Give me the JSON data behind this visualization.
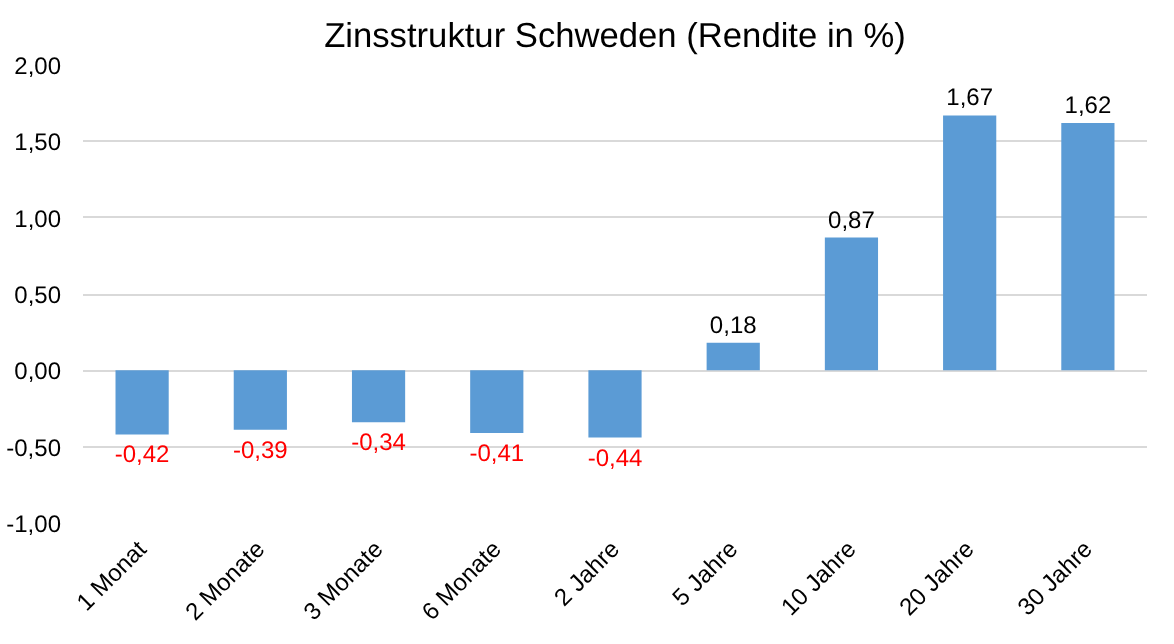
{
  "chart_data": {
    "type": "bar",
    "title": "Zinsstruktur Schweden (Rendite in %)",
    "categories": [
      "1 Monat",
      "2 Monate",
      "3 Monate",
      "6 Monate",
      "2 Jahre",
      "5 Jahre",
      "10 Jahre",
      "20 Jahre",
      "30 Jahre"
    ],
    "values": [
      -0.42,
      -0.39,
      -0.34,
      -0.41,
      -0.44,
      0.18,
      0.87,
      1.67,
      1.62
    ],
    "value_labels": [
      "-0,42",
      "-0,39",
      "-0,34",
      "-0,41",
      "-0,44",
      "0,18",
      "0,87",
      "1,67",
      "1,62"
    ],
    "color": "#5b9bd5",
    "ylim": [
      -1,
      2
    ],
    "yticks": [
      {
        "value": -1,
        "label": "-1,00"
      },
      {
        "value": -0.5,
        "label": "-0,50"
      },
      {
        "value": 0,
        "label": "0,00"
      },
      {
        "value": 0.5,
        "label": "0,50"
      },
      {
        "value": 1,
        "label": "1,00"
      },
      {
        "value": 1.5,
        "label": "1,50"
      },
      {
        "value": 2,
        "label": "2,00"
      }
    ],
    "grid": "y"
  }
}
